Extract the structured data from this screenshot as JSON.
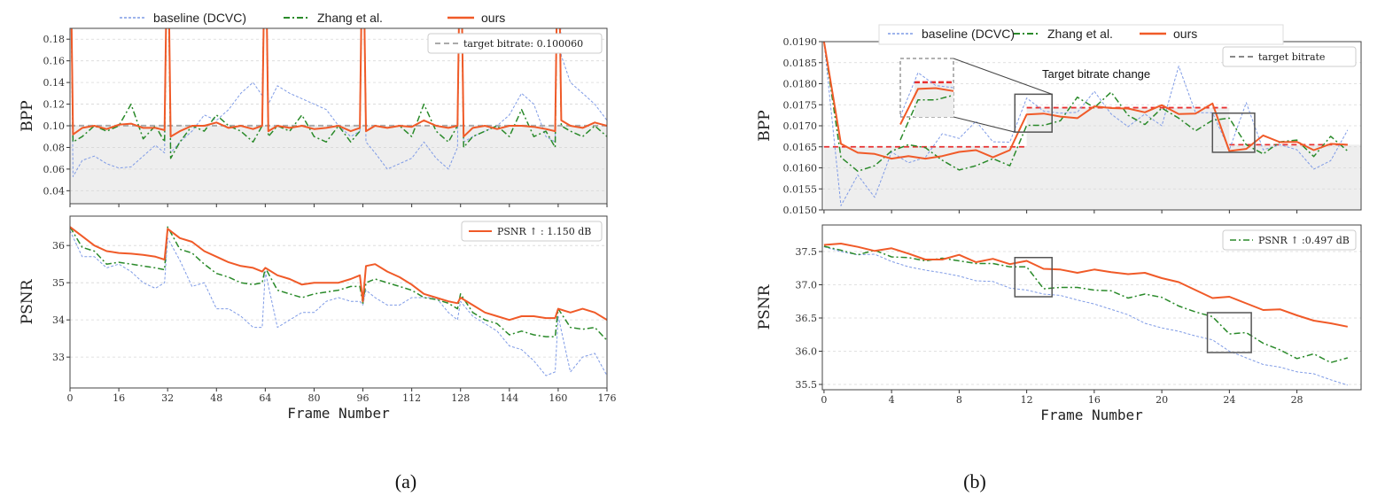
{
  "panel_labels": {
    "a": "(a)",
    "b": "(b)"
  },
  "legend_series": [
    "baseline (DCVC)",
    "Zhang et al.",
    "ours"
  ],
  "colors": {
    "baseline": "#7f9be6",
    "zhang": "#2a8a2a",
    "ours": "#f05a28",
    "target_a": "#aaaaaa",
    "target_b": "#e83030",
    "fill": "#eeeeee"
  },
  "chart_data": [
    {
      "id": "a_bpp",
      "type": "line",
      "ylabel": "BPP",
      "xlabel": "",
      "xlim": [
        0,
        176
      ],
      "ylim": [
        0.028,
        0.19
      ],
      "grid": true,
      "yticks": [
        "0.04",
        "0.06",
        "0.08",
        "0.10",
        "0.12",
        "0.14",
        "0.16",
        "0.18"
      ],
      "legend": {
        "label": "target bitrate: 0.100060",
        "placement": "top-right"
      },
      "target": [
        {
          "from": 0,
          "to": 176,
          "value": 0.10006
        }
      ],
      "x": [
        0,
        1,
        4,
        8,
        12,
        16,
        20,
        24,
        28,
        31,
        32,
        33,
        36,
        40,
        44,
        48,
        52,
        56,
        60,
        63,
        64,
        65,
        68,
        72,
        76,
        80,
        84,
        88,
        92,
        95,
        96,
        97,
        100,
        104,
        108,
        112,
        116,
        120,
        124,
        127,
        128,
        129,
        132,
        136,
        140,
        144,
        148,
        152,
        156,
        159,
        160,
        161,
        164,
        168,
        172,
        176
      ],
      "series": [
        {
          "name": "baseline (DCVC)",
          "key": "baseline",
          "values": [
            0.3,
            0.053,
            0.068,
            0.072,
            0.065,
            0.061,
            0.062,
            0.072,
            0.082,
            0.075,
            0.3,
            0.075,
            0.085,
            0.095,
            0.11,
            0.105,
            0.115,
            0.13,
            0.14,
            0.128,
            0.3,
            0.12,
            0.137,
            0.13,
            0.125,
            0.12,
            0.115,
            0.1,
            0.09,
            0.095,
            0.3,
            0.085,
            0.075,
            0.06,
            0.065,
            0.07,
            0.085,
            0.07,
            0.06,
            0.08,
            0.3,
            0.085,
            0.09,
            0.095,
            0.1,
            0.11,
            0.13,
            0.12,
            0.09,
            0.085,
            0.3,
            0.165,
            0.14,
            0.13,
            0.12,
            0.105
          ]
        },
        {
          "name": "Zhang et al.",
          "key": "zhang",
          "values": [
            0.3,
            0.085,
            0.09,
            0.1,
            0.095,
            0.1,
            0.12,
            0.088,
            0.1,
            0.085,
            0.3,
            0.07,
            0.085,
            0.1,
            0.095,
            0.11,
            0.1,
            0.095,
            0.085,
            0.1,
            0.3,
            0.09,
            0.1,
            0.095,
            0.11,
            0.09,
            0.085,
            0.1,
            0.085,
            0.095,
            0.3,
            0.095,
            0.1,
            0.098,
            0.1,
            0.09,
            0.12,
            0.095,
            0.085,
            0.1,
            0.3,
            0.08,
            0.09,
            0.095,
            0.1,
            0.09,
            0.115,
            0.09,
            0.095,
            0.08,
            0.3,
            0.1,
            0.095,
            0.09,
            0.1,
            0.09
          ]
        },
        {
          "name": "ours",
          "key": "ours",
          "values": [
            0.3,
            0.092,
            0.098,
            0.1,
            0.097,
            0.101,
            0.102,
            0.098,
            0.098,
            0.096,
            0.3,
            0.09,
            0.095,
            0.1,
            0.1,
            0.103,
            0.098,
            0.1,
            0.097,
            0.1,
            0.3,
            0.095,
            0.1,
            0.098,
            0.1,
            0.097,
            0.098,
            0.1,
            0.095,
            0.098,
            0.3,
            0.095,
            0.1,
            0.098,
            0.1,
            0.099,
            0.105,
            0.1,
            0.098,
            0.1,
            0.3,
            0.09,
            0.098,
            0.1,
            0.097,
            0.1,
            0.1,
            0.099,
            0.097,
            0.095,
            0.3,
            0.105,
            0.1,
            0.098,
            0.103,
            0.1
          ]
        }
      ]
    },
    {
      "id": "a_psnr",
      "type": "line",
      "ylabel": "PSNR",
      "xlabel": "Frame Number",
      "xlim": [
        0,
        176
      ],
      "ylim": [
        32.17,
        36.79
      ],
      "grid": true,
      "xticks": [
        "0",
        "16",
        "32",
        "48",
        "64",
        "80",
        "96",
        "112",
        "128",
        "144",
        "160",
        "176"
      ],
      "yticks": [
        "33",
        "34",
        "35",
        "36"
      ],
      "legend": {
        "label": "PSNR ↑ : 1.150 dB",
        "series": "ours",
        "placement": "top-right"
      },
      "x": [
        0,
        4,
        8,
        12,
        16,
        20,
        24,
        28,
        31,
        32,
        36,
        40,
        44,
        48,
        52,
        56,
        60,
        63,
        64,
        68,
        72,
        76,
        80,
        84,
        88,
        92,
        95,
        96,
        97,
        100,
        104,
        108,
        112,
        116,
        120,
        124,
        127,
        128,
        132,
        136,
        140,
        144,
        148,
        152,
        156,
        159,
        160,
        164,
        168,
        172,
        176
      ],
      "series": [
        {
          "name": "baseline (DCVC)",
          "key": "baseline",
          "values": [
            36.4,
            35.7,
            35.7,
            35.4,
            35.5,
            35.3,
            35.0,
            34.85,
            35.0,
            36.2,
            35.6,
            34.9,
            35.0,
            34.3,
            34.3,
            34.1,
            33.8,
            33.8,
            35.3,
            33.8,
            34.0,
            34.2,
            34.2,
            34.5,
            34.6,
            34.5,
            34.5,
            34.4,
            34.8,
            34.6,
            34.4,
            34.4,
            34.6,
            34.6,
            34.6,
            34.2,
            34.0,
            34.5,
            34.1,
            33.9,
            33.7,
            33.3,
            33.2,
            32.9,
            32.5,
            32.6,
            34.1,
            32.6,
            33.0,
            33.1,
            32.5
          ]
        },
        {
          "name": "Zhang et al.",
          "key": "zhang",
          "values": [
            36.5,
            35.95,
            35.85,
            35.5,
            35.55,
            35.5,
            35.45,
            35.4,
            35.35,
            36.5,
            35.9,
            35.8,
            35.5,
            35.25,
            35.15,
            35.0,
            34.95,
            35.0,
            35.4,
            34.8,
            34.7,
            34.6,
            34.7,
            34.75,
            34.8,
            34.9,
            34.9,
            34.45,
            35.0,
            35.1,
            35.0,
            34.9,
            34.8,
            34.6,
            34.55,
            34.45,
            34.3,
            34.7,
            34.2,
            34.0,
            33.9,
            33.6,
            33.7,
            33.6,
            33.55,
            33.55,
            34.3,
            33.8,
            33.75,
            33.8,
            33.45
          ]
        },
        {
          "name": "ours",
          "key": "ours",
          "values": [
            36.5,
            36.25,
            36.0,
            35.85,
            35.8,
            35.78,
            35.75,
            35.7,
            35.62,
            36.45,
            36.2,
            36.1,
            35.85,
            35.7,
            35.55,
            35.45,
            35.4,
            35.3,
            35.4,
            35.2,
            35.1,
            34.95,
            35.0,
            35.0,
            35.0,
            35.1,
            35.2,
            34.5,
            35.45,
            35.5,
            35.3,
            35.15,
            34.95,
            34.7,
            34.6,
            34.5,
            34.45,
            34.6,
            34.4,
            34.2,
            34.1,
            34.0,
            34.1,
            34.1,
            34.05,
            34.05,
            34.3,
            34.2,
            34.3,
            34.2,
            34.0
          ]
        }
      ]
    },
    {
      "id": "b_bpp",
      "type": "line",
      "ylabel": "BPP",
      "xlabel": "",
      "xlim": [
        -0.1,
        31.8
      ],
      "ylim": [
        0.015,
        0.019
      ],
      "grid": true,
      "yticks": [
        "0.0150",
        "0.0155",
        "0.0160",
        "0.0165",
        "0.0170",
        "0.0175",
        "0.0180",
        "0.0185",
        "0.0190"
      ],
      "legend": {
        "label": "target bitrate",
        "placement": "top-right"
      },
      "annotation": "Target bitrate change",
      "target": [
        {
          "from": 0,
          "to": 12,
          "value": 0.0165
        },
        {
          "from": 12,
          "to": 24,
          "value": 0.01743
        },
        {
          "from": 24,
          "to": 31,
          "value": 0.01655
        }
      ],
      "x": [
        0,
        1,
        2,
        3,
        4,
        5,
        6,
        7,
        8,
        9,
        10,
        11,
        12,
        13,
        14,
        15,
        16,
        17,
        18,
        19,
        20,
        21,
        22,
        23,
        24,
        25,
        26,
        27,
        28,
        29,
        30,
        31
      ],
      "series": [
        {
          "name": "baseline (DCVC)",
          "key": "baseline",
          "values": [
            0.019,
            0.0151,
            0.01583,
            0.0153,
            0.01638,
            0.01612,
            0.01625,
            0.01681,
            0.0167,
            0.01711,
            0.01662,
            0.01661,
            0.01766,
            0.01735,
            0.0173,
            0.01732,
            0.01782,
            0.01728,
            0.01698,
            0.01728,
            0.017,
            0.01842,
            0.01731,
            0.01731,
            0.01643,
            0.01755,
            0.01643,
            0.01655,
            0.01643,
            0.01597,
            0.01617,
            0.0169
          ]
        },
        {
          "name": "Zhang et al.",
          "key": "zhang",
          "values": [
            0.019,
            0.01625,
            0.01592,
            0.01605,
            0.0164,
            0.01655,
            0.01648,
            0.01618,
            0.01595,
            0.01605,
            0.01622,
            0.01605,
            0.01701,
            0.01701,
            0.01712,
            0.01768,
            0.01743,
            0.0178,
            0.01725,
            0.01703,
            0.01742,
            0.01718,
            0.01688,
            0.01713,
            0.01718,
            0.01655,
            0.01633,
            0.01662,
            0.01666,
            0.01627,
            0.01675,
            0.0164
          ]
        },
        {
          "name": "ours",
          "key": "ours",
          "values": [
            0.019,
            0.01657,
            0.01636,
            0.01633,
            0.01622,
            0.01628,
            0.01622,
            0.01628,
            0.01638,
            0.01642,
            0.01625,
            0.01642,
            0.01727,
            0.01729,
            0.01722,
            0.01718,
            0.01746,
            0.01742,
            0.01741,
            0.01732,
            0.01749,
            0.01728,
            0.01729,
            0.01753,
            0.0164,
            0.01645,
            0.01677,
            0.01661,
            0.01662,
            0.01642,
            0.01657,
            0.01655
          ]
        }
      ]
    },
    {
      "id": "b_psnr",
      "type": "line",
      "ylabel": "PSNR",
      "xlabel": "Frame Number",
      "xlim": [
        -0.1,
        31.8
      ],
      "ylim": [
        35.42,
        37.9
      ],
      "grid": true,
      "xticks": [
        "0",
        "4",
        "8",
        "12",
        "16",
        "20",
        "24",
        "28"
      ],
      "yticks": [
        "35.5",
        "36.0",
        "36.5",
        "37.0",
        "37.5"
      ],
      "legend": {
        "label": "PSNR ↑ :0.497 dB",
        "series": "zhang",
        "placement": "top-right"
      },
      "x": [
        0,
        1,
        2,
        3,
        4,
        5,
        6,
        7,
        8,
        9,
        10,
        11,
        12,
        13,
        14,
        15,
        16,
        17,
        18,
        19,
        20,
        21,
        22,
        23,
        24,
        25,
        26,
        27,
        28,
        29,
        30,
        31
      ],
      "series": [
        {
          "name": "baseline (DCVC)",
          "key": "baseline",
          "values": [
            37.57,
            37.5,
            37.45,
            37.46,
            37.35,
            37.27,
            37.22,
            37.18,
            37.13,
            37.06,
            37.05,
            36.95,
            36.92,
            36.86,
            36.84,
            36.77,
            36.71,
            36.63,
            36.55,
            36.42,
            36.35,
            36.3,
            36.23,
            36.17,
            36.0,
            35.9,
            35.8,
            35.76,
            35.69,
            35.66,
            35.57,
            35.49
          ]
        },
        {
          "name": "Zhang et al.",
          "key": "zhang",
          "values": [
            37.58,
            37.52,
            37.45,
            37.52,
            37.42,
            37.41,
            37.36,
            37.4,
            37.36,
            37.32,
            37.32,
            37.27,
            37.27,
            36.94,
            36.96,
            36.96,
            36.92,
            36.91,
            36.8,
            36.86,
            36.81,
            36.68,
            36.59,
            36.52,
            36.26,
            36.28,
            36.12,
            36.02,
            35.89,
            35.96,
            35.83,
            35.9
          ]
        },
        {
          "name": "ours",
          "key": "ours",
          "values": [
            37.6,
            37.62,
            37.57,
            37.51,
            37.55,
            37.47,
            37.38,
            37.38,
            37.45,
            37.34,
            37.39,
            37.31,
            37.36,
            37.24,
            37.23,
            37.18,
            37.23,
            37.19,
            37.16,
            37.18,
            37.1,
            37.04,
            36.92,
            36.8,
            36.82,
            36.72,
            36.62,
            36.63,
            36.54,
            36.46,
            36.42,
            36.37
          ]
        }
      ]
    }
  ]
}
